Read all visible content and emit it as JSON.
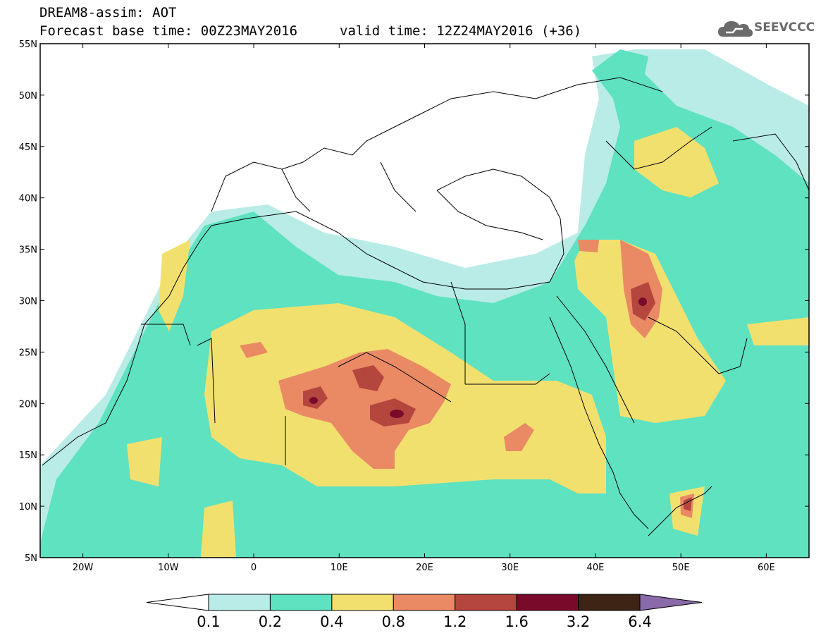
{
  "header": {
    "title": "DREAM8-assim: AOT",
    "base_time": "Forecast base time: 00Z23MAY2016",
    "valid_time": "valid time: 12Z24MAY2016 (+36)",
    "logo_text": "SEEVCCC",
    "logo_icon": "cloud-icon"
  },
  "map": {
    "lat_labels": [
      "55N",
      "50N",
      "45N",
      "40N",
      "35N",
      "30N",
      "25N",
      "20N",
      "15N",
      "10N",
      "5N"
    ],
    "lon_labels": [
      "20W",
      "10W",
      "0",
      "10E",
      "20E",
      "30E",
      "40E",
      "50E",
      "60E"
    ],
    "extent": {
      "lon_min": -25,
      "lon_max": 65,
      "lat_min": 5,
      "lat_max": 55
    }
  },
  "colorbar": {
    "levels": [
      "0.1",
      "0.2",
      "0.4",
      "0.8",
      "1.2",
      "1.6",
      "3.2",
      "6.4"
    ],
    "colors": [
      "#b9ece6",
      "#5ee2c0",
      "#f2e06e",
      "#e98a65",
      "#b5463e",
      "#7a0a2a",
      "#3d2415"
    ],
    "under_color": "#ffffff",
    "over_color": "#8a6aa8"
  }
}
